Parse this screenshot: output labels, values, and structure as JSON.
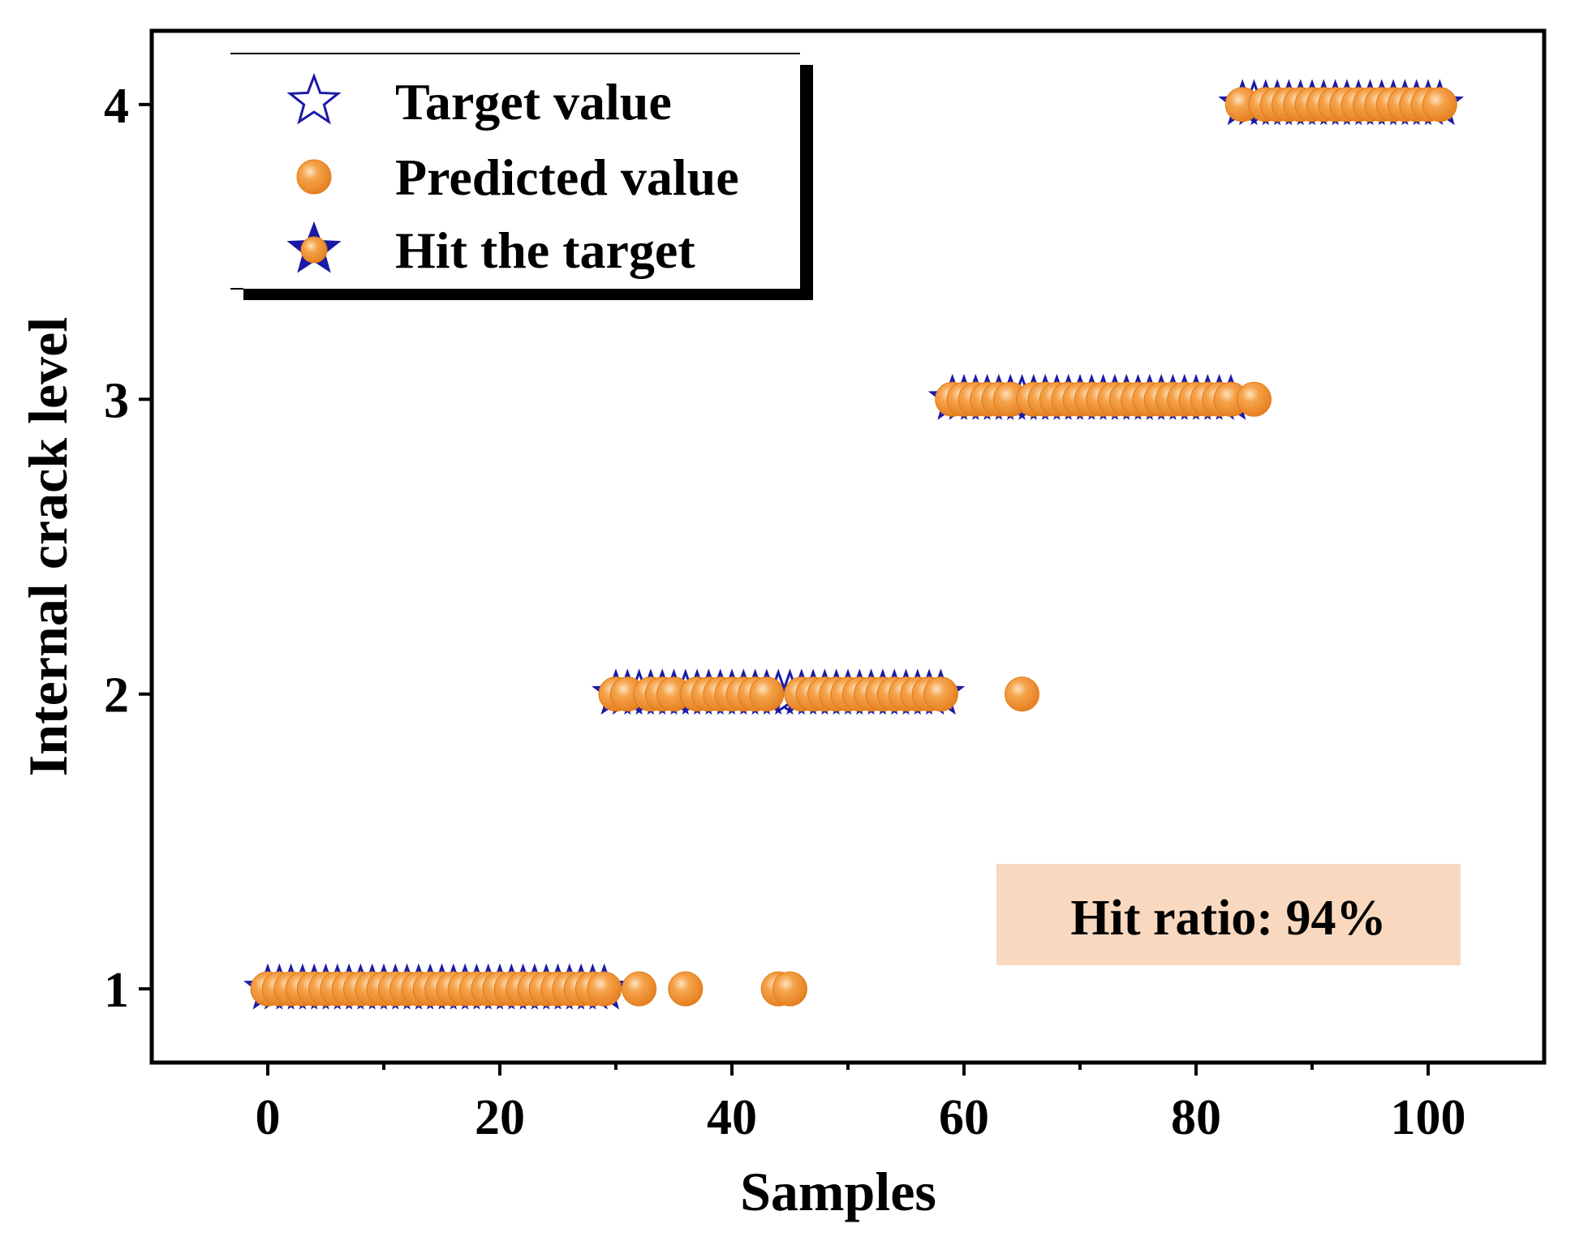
{
  "chart_data": {
    "type": "scatter",
    "title": "",
    "xlabel": "Samples",
    "ylabel": "Internal crack level",
    "xlim": [
      -10,
      110
    ],
    "ylim": [
      0.75,
      4.25
    ],
    "xticks": [
      0,
      20,
      40,
      60,
      80,
      100
    ],
    "xticks_minor": [
      10,
      30,
      50,
      70,
      90
    ],
    "yticks": [
      1,
      2,
      3,
      4
    ],
    "grid": false,
    "legend": {
      "placement": "top-left",
      "entries": [
        "Target value",
        "Predicted value",
        "Hit the target"
      ]
    },
    "annotation": "Hit ratio: 94%",
    "colors": {
      "target": "#1a1aa6",
      "predicted": "#f39a38",
      "predicted_dark": "#e07a18",
      "annotation_bg": "#f8d9bf"
    },
    "series": [
      {
        "name": "Target value",
        "x": [
          0,
          1,
          2,
          3,
          4,
          5,
          6,
          7,
          8,
          9,
          10,
          11,
          12,
          13,
          14,
          15,
          16,
          17,
          18,
          19,
          20,
          21,
          22,
          23,
          24,
          25,
          26,
          27,
          28,
          29,
          30,
          31,
          32,
          33,
          34,
          35,
          36,
          37,
          38,
          39,
          40,
          41,
          42,
          43,
          44,
          45,
          46,
          47,
          48,
          49,
          50,
          51,
          52,
          53,
          54,
          55,
          56,
          57,
          58,
          59,
          60,
          61,
          62,
          63,
          64,
          65,
          66,
          67,
          68,
          69,
          70,
          71,
          72,
          73,
          74,
          75,
          76,
          77,
          78,
          79,
          80,
          81,
          82,
          83,
          84,
          85,
          86,
          87,
          88,
          89,
          90,
          91,
          92,
          93,
          94,
          95,
          96,
          97,
          98,
          99,
          100,
          101
        ],
        "y": [
          1,
          1,
          1,
          1,
          1,
          1,
          1,
          1,
          1,
          1,
          1,
          1,
          1,
          1,
          1,
          1,
          1,
          1,
          1,
          1,
          1,
          1,
          1,
          1,
          1,
          1,
          1,
          1,
          1,
          1,
          2,
          2,
          2,
          2,
          2,
          2,
          2,
          2,
          2,
          2,
          2,
          2,
          2,
          2,
          2,
          2,
          2,
          2,
          2,
          2,
          2,
          2,
          2,
          2,
          2,
          2,
          2,
          2,
          2,
          3,
          3,
          3,
          3,
          3,
          3,
          3,
          3,
          3,
          3,
          3,
          3,
          3,
          3,
          3,
          3,
          3,
          3,
          3,
          3,
          3,
          3,
          3,
          3,
          3,
          4,
          4,
          4,
          4,
          4,
          4,
          4,
          4,
          4,
          4,
          4,
          4,
          4,
          4,
          4,
          4,
          4,
          4
        ]
      },
      {
        "name": "Predicted value",
        "x": [
          0,
          1,
          2,
          3,
          4,
          5,
          6,
          7,
          8,
          9,
          10,
          11,
          12,
          13,
          14,
          15,
          16,
          17,
          18,
          19,
          20,
          21,
          22,
          23,
          24,
          25,
          26,
          27,
          28,
          29,
          30,
          31,
          32,
          33,
          34,
          35,
          36,
          37,
          38,
          39,
          40,
          41,
          42,
          43,
          44,
          45,
          46,
          47,
          48,
          49,
          50,
          51,
          52,
          53,
          54,
          55,
          56,
          57,
          58,
          59,
          60,
          61,
          62,
          63,
          64,
          65,
          66,
          67,
          68,
          69,
          70,
          71,
          72,
          73,
          74,
          75,
          76,
          77,
          78,
          79,
          80,
          81,
          82,
          83,
          84,
          85,
          86,
          87,
          88,
          89,
          90,
          91,
          92,
          93,
          94,
          95,
          96,
          97,
          98,
          99,
          100,
          101
        ],
        "y": [
          1,
          1,
          1,
          1,
          1,
          1,
          1,
          1,
          1,
          1,
          1,
          1,
          1,
          1,
          1,
          1,
          1,
          1,
          1,
          1,
          1,
          1,
          1,
          1,
          1,
          1,
          1,
          1,
          1,
          1,
          2,
          2,
          1,
          2,
          2,
          2,
          1,
          2,
          2,
          2,
          2,
          2,
          2,
          2,
          1,
          1,
          2,
          2,
          2,
          2,
          2,
          2,
          2,
          2,
          2,
          2,
          2,
          2,
          2,
          3,
          3,
          3,
          3,
          3,
          3,
          2,
          3,
          3,
          3,
          3,
          3,
          3,
          3,
          3,
          3,
          3,
          3,
          3,
          3,
          3,
          3,
          3,
          3,
          3,
          4,
          3,
          4,
          4,
          4,
          4,
          4,
          4,
          4,
          4,
          4,
          4,
          4,
          4,
          4,
          4,
          4,
          4
        ]
      }
    ]
  }
}
